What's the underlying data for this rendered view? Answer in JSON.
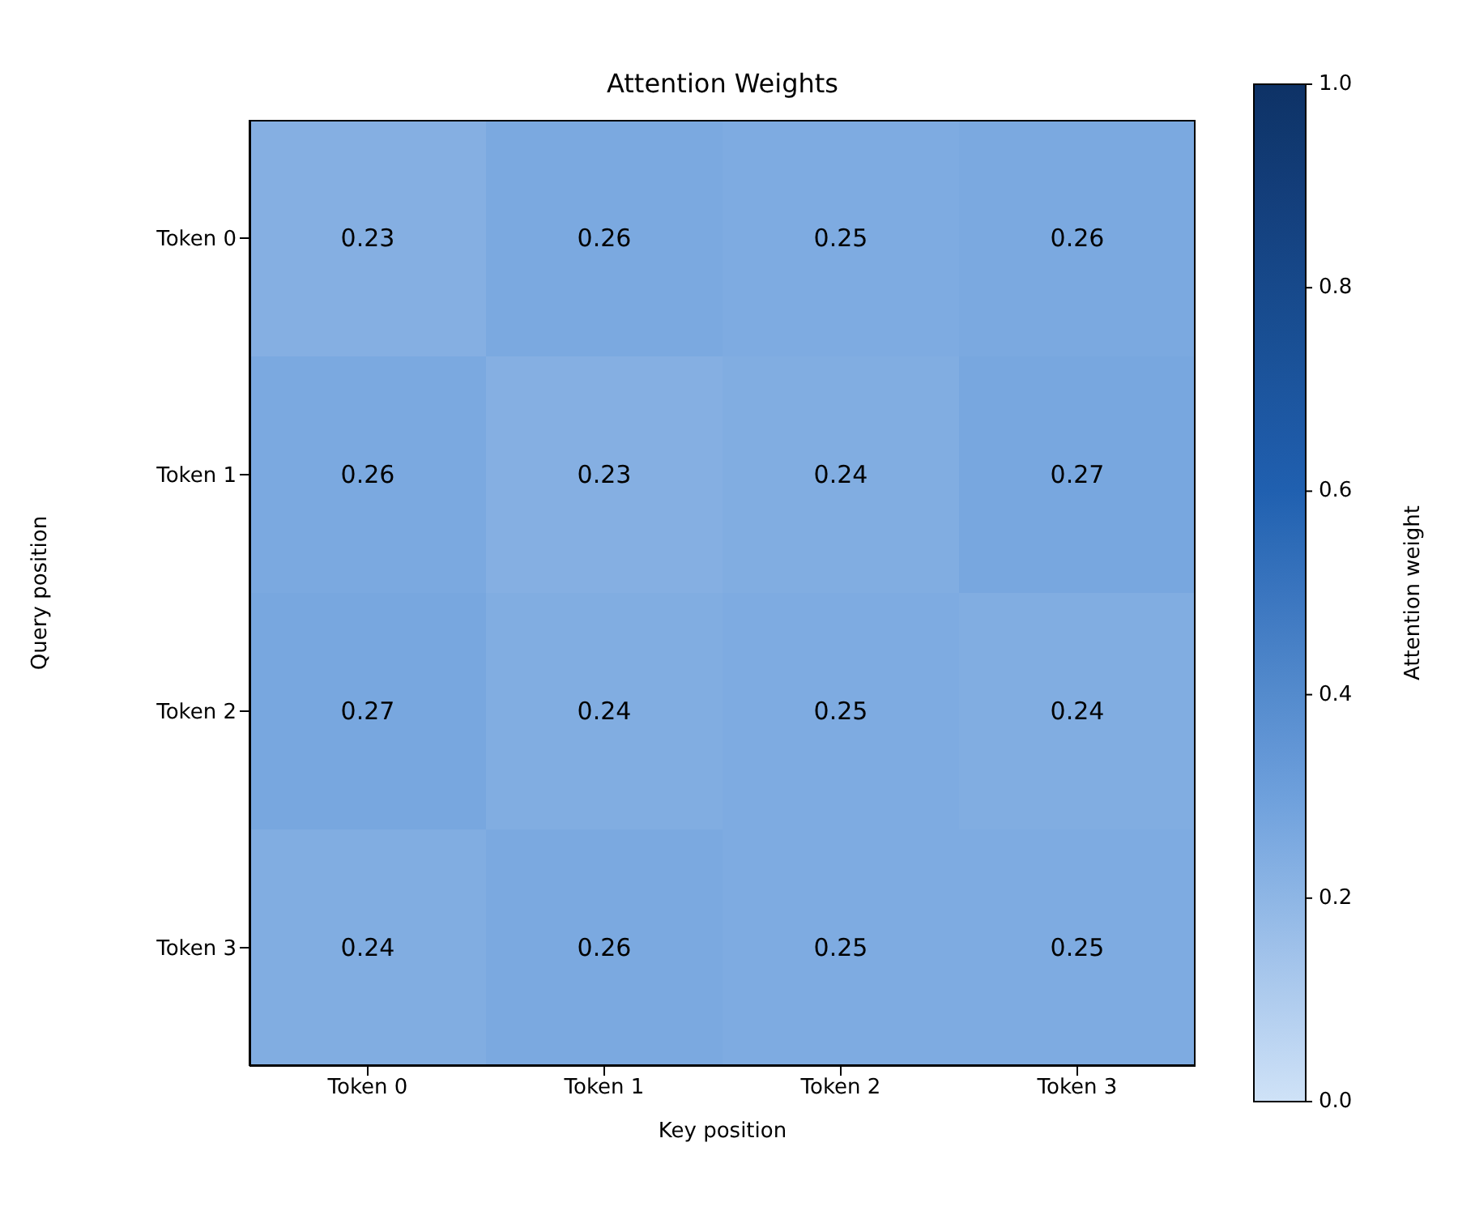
{
  "chart_data": {
    "type": "heatmap",
    "title": "Attention Weights",
    "xlabel": "Key position",
    "ylabel": "Query position",
    "clabel": "Attention weight",
    "categories": [
      "Token 0",
      "Token 1",
      "Token 2",
      "Token 3"
    ],
    "y_categories": [
      "Token 0",
      "Token 1",
      "Token 2",
      "Token 3"
    ],
    "cells": [
      [
        0.23,
        0.26,
        0.25,
        0.26
      ],
      [
        0.26,
        0.23,
        0.24,
        0.27
      ],
      [
        0.27,
        0.24,
        0.25,
        0.24
      ],
      [
        0.24,
        0.26,
        0.25,
        0.25
      ]
    ],
    "data_labels": true,
    "clim": [
      0.0,
      1.0
    ],
    "cticks": [
      {
        "value": 0,
        "label": "0.0"
      },
      {
        "value": 0.2,
        "label": "0.2"
      },
      {
        "value": 0.4,
        "label": "0.4"
      },
      {
        "value": 0.6,
        "label": "0.6"
      },
      {
        "value": 0.8,
        "label": "0.8"
      },
      {
        "value": 1,
        "label": "1.0"
      }
    ]
  }
}
